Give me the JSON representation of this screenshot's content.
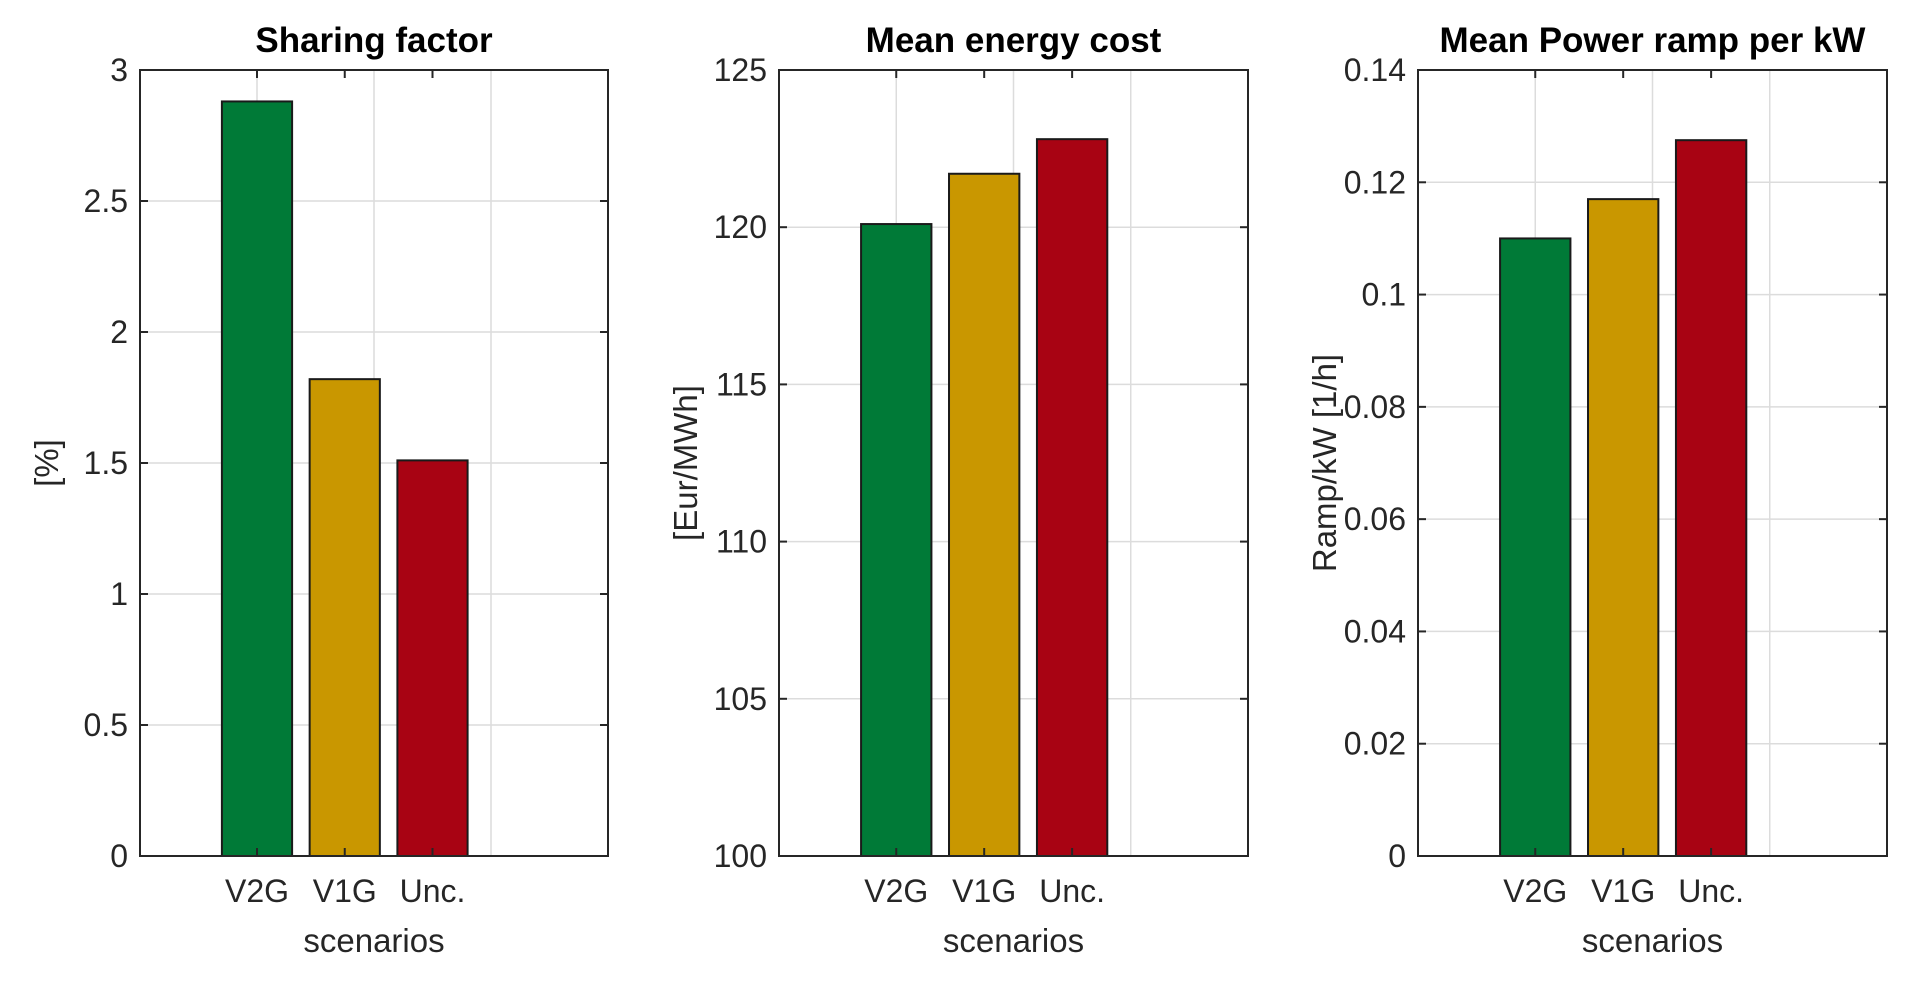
{
  "chart_data": [
    {
      "type": "bar",
      "title": "Sharing factor",
      "xlabel": "scenarios",
      "ylabel": "[%]",
      "categories": [
        "V2G",
        "V1G",
        "Unc."
      ],
      "values": [
        2.88,
        1.82,
        1.51
      ],
      "colors": [
        "#007A37",
        "#C99700",
        "#A80313"
      ],
      "ylim": [
        0,
        3
      ],
      "yticks": [
        0,
        0.5,
        1,
        1.5,
        2,
        2.5,
        3
      ],
      "ytick_labels": [
        "0",
        "0.5",
        "1",
        "1.5",
        "2",
        "2.5",
        "3"
      ],
      "grid": true
    },
    {
      "type": "bar",
      "title": "Mean energy cost",
      "xlabel": "scenarios",
      "ylabel": "[Eur/MWh]",
      "categories": [
        "V2G",
        "V1G",
        "Unc."
      ],
      "values": [
        120.1,
        121.7,
        122.8
      ],
      "colors": [
        "#007A37",
        "#C99700",
        "#A80313"
      ],
      "ylim": [
        100,
        125
      ],
      "yticks": [
        100,
        105,
        110,
        115,
        120,
        125
      ],
      "ytick_labels": [
        "100",
        "105",
        "110",
        "115",
        "120",
        "125"
      ],
      "grid": true
    },
    {
      "type": "bar",
      "title": "Mean Power ramp per kW",
      "xlabel": "scenarios",
      "ylabel": "Ramp/kW [1/h]",
      "categories": [
        "V2G",
        "V1G",
        "Unc."
      ],
      "values": [
        0.11,
        0.117,
        0.1275
      ],
      "colors": [
        "#007A37",
        "#C99700",
        "#A80313"
      ],
      "ylim": [
        0,
        0.14
      ],
      "yticks": [
        0,
        0.02,
        0.04,
        0.06,
        0.08,
        0.1,
        0.12,
        0.14
      ],
      "ytick_labels": [
        "0",
        "0.02",
        "0.04",
        "0.06",
        "0.08",
        "0.1",
        "0.12",
        "0.14"
      ],
      "grid": true
    }
  ]
}
